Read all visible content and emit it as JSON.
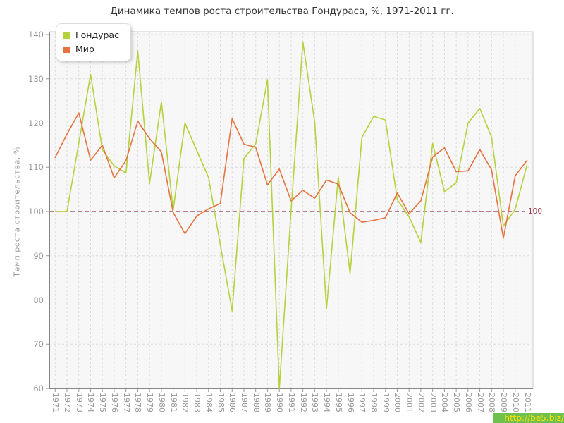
{
  "title": "Динамика темпов роста строительства Гондураса, %, 1971-2011 гг.",
  "y_axis": {
    "label": "Темп роста строительства, %",
    "ticks": [
      140,
      130,
      120,
      110,
      100,
      90,
      80,
      70,
      60
    ]
  },
  "x_axis": {
    "years": [
      1971,
      1972,
      1973,
      1974,
      1975,
      1976,
      1977,
      1978,
      1979,
      1980,
      1981,
      1982,
      1983,
      1984,
      1985,
      1986,
      1987,
      1988,
      1989,
      1990,
      1991,
      1992,
      1993,
      1994,
      1995,
      1996,
      1997,
      1998,
      1999,
      2000,
      2001,
      2002,
      2003,
      2004,
      2005,
      2006,
      2007,
      2008,
      2009,
      2010,
      2011
    ]
  },
  "legend": [
    {
      "label": "Гондурас",
      "color": "#b3d23c"
    },
    {
      "label": "Мир",
      "color": "#e5723f"
    }
  ],
  "reference_line": {
    "value": 100,
    "label": "100",
    "color": "#8e3b4d"
  },
  "watermark": {
    "text": "http://be5.biz/"
  },
  "colors": {
    "grid": "#dcdcdc",
    "plot_bg": "#f7f7f7",
    "plot_border": "#cccccc",
    "axis": "#888888",
    "tick": "#999999"
  },
  "chart_data": {
    "type": "line",
    "x": [
      1971,
      1972,
      1973,
      1974,
      1975,
      1976,
      1977,
      1978,
      1979,
      1980,
      1981,
      1982,
      1983,
      1984,
      1985,
      1986,
      1987,
      1988,
      1989,
      1990,
      1991,
      1992,
      1993,
      1994,
      1995,
      1996,
      1997,
      1998,
      1999,
      2000,
      2001,
      2002,
      2003,
      2004,
      2005,
      2006,
      2007,
      2008,
      2009,
      2010,
      2011
    ],
    "series": [
      {
        "name": "Гондурас",
        "color": "#b3d23c",
        "values": [
          100,
          100,
          115.5,
          131,
          114,
          110.3,
          108.7,
          136.3,
          106.3,
          124.8,
          100.3,
          120,
          113.8,
          107.7,
          92.5,
          77.5,
          112,
          115.3,
          129.8,
          60,
          100.2,
          138.3,
          120.2,
          78,
          107.8,
          86,
          116.7,
          121.5,
          120.7,
          102.7,
          98.8,
          93,
          115.4,
          104.5,
          106.5,
          120,
          123.3,
          116.8,
          96.7,
          100.5,
          110.5
        ]
      },
      {
        "name": "Мир",
        "color": "#e5723f",
        "values": [
          112.2,
          117.5,
          122.3,
          111.6,
          115,
          107.6,
          111.5,
          120.4,
          116.5,
          113.5,
          99.8,
          95,
          99,
          100.6,
          101.8,
          121,
          115.2,
          114.5,
          106,
          109.6,
          102.4,
          104.8,
          103,
          107.1,
          106.2,
          99.7,
          97.6,
          98,
          98.6,
          104.2,
          99.5,
          102.4,
          112.3,
          114.4,
          109,
          109.2,
          114,
          109.4,
          94,
          108.1,
          111.5
        ]
      }
    ],
    "title": "Динамика темпов роста строительства Гондураса, %, 1971-2011 гг.",
    "ylabel": "Темп роста строительства, %",
    "ylim": [
      60,
      140
    ],
    "reference_line": 100,
    "grid": true,
    "legend_position": "top-left"
  }
}
